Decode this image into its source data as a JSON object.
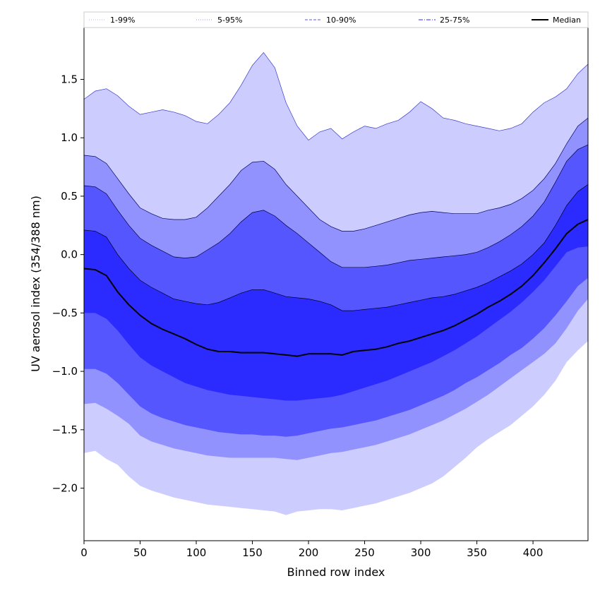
{
  "chart_data": {
    "type": "area",
    "xlabel": "Binned row index",
    "ylabel": "UV aerosol index (354/388 nm)",
    "xlim": [
      0,
      449
    ],
    "ylim": [
      -2.45,
      1.95
    ],
    "x_ticks": [
      0,
      50,
      100,
      150,
      200,
      250,
      300,
      350,
      400
    ],
    "y_ticks": [
      -2.0,
      -1.5,
      -1.0,
      -0.5,
      0.0,
      0.5,
      1.0,
      1.5
    ],
    "y_tick_labels": [
      "−2.0",
      "−1.5",
      "−1.0",
      "−0.5",
      "0.0",
      "0.5",
      "1.0",
      "1.5"
    ],
    "grid": false,
    "legend_position": "top",
    "x": [
      0,
      10,
      20,
      30,
      40,
      50,
      60,
      70,
      80,
      90,
      100,
      110,
      120,
      130,
      140,
      150,
      160,
      170,
      180,
      190,
      200,
      210,
      220,
      230,
      240,
      250,
      260,
      270,
      280,
      290,
      300,
      310,
      320,
      330,
      340,
      350,
      360,
      370,
      380,
      390,
      400,
      410,
      420,
      430,
      440,
      449
    ],
    "bands": [
      {
        "name": "1-99%",
        "color": "#ccccff",
        "edge_color": "#3a3acc",
        "line_style": "dotted",
        "lower": [
          -1.7,
          -1.68,
          -1.75,
          -1.8,
          -1.9,
          -1.98,
          -2.02,
          -2.05,
          -2.08,
          -2.1,
          -2.12,
          -2.14,
          -2.15,
          -2.16,
          -2.17,
          -2.18,
          -2.19,
          -2.2,
          -2.23,
          -2.2,
          -2.19,
          -2.18,
          -2.18,
          -2.19,
          -2.17,
          -2.15,
          -2.13,
          -2.1,
          -2.07,
          -2.04,
          -2.0,
          -1.96,
          -1.9,
          -1.82,
          -1.74,
          -1.65,
          -1.58,
          -1.52,
          -1.46,
          -1.38,
          -1.3,
          -1.2,
          -1.08,
          -0.92,
          -0.82,
          -0.74
        ],
        "upper": [
          1.33,
          1.4,
          1.42,
          1.36,
          1.27,
          1.2,
          1.22,
          1.24,
          1.22,
          1.19,
          1.14,
          1.12,
          1.2,
          1.3,
          1.45,
          1.62,
          1.73,
          1.6,
          1.3,
          1.1,
          0.98,
          1.05,
          1.08,
          0.99,
          1.05,
          1.1,
          1.08,
          1.12,
          1.15,
          1.22,
          1.31,
          1.25,
          1.17,
          1.15,
          1.12,
          1.1,
          1.08,
          1.06,
          1.08,
          1.12,
          1.22,
          1.3,
          1.35,
          1.42,
          1.55,
          1.63
        ]
      },
      {
        "name": "5-95%",
        "color": "#9292ff",
        "edge_color": "#000066",
        "line_style": "dotted",
        "lower": [
          -1.28,
          -1.27,
          -1.32,
          -1.38,
          -1.45,
          -1.55,
          -1.6,
          -1.63,
          -1.66,
          -1.68,
          -1.7,
          -1.72,
          -1.73,
          -1.74,
          -1.74,
          -1.74,
          -1.74,
          -1.74,
          -1.75,
          -1.76,
          -1.74,
          -1.72,
          -1.7,
          -1.69,
          -1.67,
          -1.65,
          -1.63,
          -1.6,
          -1.57,
          -1.54,
          -1.5,
          -1.46,
          -1.42,
          -1.37,
          -1.32,
          -1.26,
          -1.2,
          -1.13,
          -1.06,
          -0.99,
          -0.92,
          -0.85,
          -0.76,
          -0.63,
          -0.48,
          -0.38
        ],
        "upper": [
          0.85,
          0.84,
          0.78,
          0.65,
          0.52,
          0.4,
          0.35,
          0.31,
          0.3,
          0.3,
          0.32,
          0.4,
          0.5,
          0.6,
          0.72,
          0.79,
          0.8,
          0.73,
          0.6,
          0.5,
          0.4,
          0.3,
          0.24,
          0.2,
          0.2,
          0.22,
          0.25,
          0.28,
          0.31,
          0.34,
          0.36,
          0.37,
          0.36,
          0.35,
          0.35,
          0.35,
          0.38,
          0.4,
          0.43,
          0.48,
          0.55,
          0.65,
          0.78,
          0.95,
          1.1,
          1.17
        ]
      },
      {
        "name": "10-90%",
        "color": "#5656ff",
        "edge_color": "#000044",
        "line_style": "dashed",
        "lower": [
          -0.98,
          -0.98,
          -1.02,
          -1.1,
          -1.2,
          -1.3,
          -1.36,
          -1.4,
          -1.43,
          -1.46,
          -1.48,
          -1.5,
          -1.52,
          -1.53,
          -1.54,
          -1.54,
          -1.55,
          -1.55,
          -1.56,
          -1.55,
          -1.53,
          -1.51,
          -1.49,
          -1.48,
          -1.46,
          -1.44,
          -1.42,
          -1.39,
          -1.36,
          -1.33,
          -1.29,
          -1.25,
          -1.21,
          -1.16,
          -1.1,
          -1.05,
          -0.99,
          -0.93,
          -0.86,
          -0.8,
          -0.72,
          -0.63,
          -0.52,
          -0.4,
          -0.27,
          -0.2
        ],
        "upper": [
          0.59,
          0.58,
          0.52,
          0.38,
          0.25,
          0.14,
          0.08,
          0.03,
          -0.02,
          -0.03,
          -0.02,
          0.04,
          0.1,
          0.18,
          0.28,
          0.36,
          0.38,
          0.33,
          0.25,
          0.18,
          0.1,
          0.02,
          -0.06,
          -0.11,
          -0.11,
          -0.11,
          -0.1,
          -0.09,
          -0.07,
          -0.05,
          -0.04,
          -0.03,
          -0.02,
          -0.01,
          0.0,
          0.02,
          0.06,
          0.11,
          0.17,
          0.24,
          0.33,
          0.45,
          0.62,
          0.8,
          0.9,
          0.94
        ]
      },
      {
        "name": "25-75%",
        "color": "#2b2bff",
        "edge_color": "#000022",
        "line_style": "dashdot",
        "lower": [
          -0.5,
          -0.5,
          -0.55,
          -0.65,
          -0.77,
          -0.88,
          -0.95,
          -1.0,
          -1.05,
          -1.1,
          -1.13,
          -1.16,
          -1.18,
          -1.2,
          -1.21,
          -1.22,
          -1.23,
          -1.24,
          -1.25,
          -1.25,
          -1.24,
          -1.23,
          -1.22,
          -1.2,
          -1.17,
          -1.14,
          -1.11,
          -1.08,
          -1.04,
          -1.0,
          -0.96,
          -0.92,
          -0.87,
          -0.82,
          -0.76,
          -0.7,
          -0.63,
          -0.56,
          -0.49,
          -0.41,
          -0.32,
          -0.22,
          -0.1,
          0.02,
          0.06,
          0.07
        ],
        "upper": [
          0.21,
          0.2,
          0.15,
          0.0,
          -0.12,
          -0.22,
          -0.28,
          -0.33,
          -0.38,
          -0.4,
          -0.42,
          -0.43,
          -0.41,
          -0.37,
          -0.33,
          -0.3,
          -0.3,
          -0.33,
          -0.36,
          -0.37,
          -0.38,
          -0.4,
          -0.43,
          -0.48,
          -0.48,
          -0.47,
          -0.46,
          -0.45,
          -0.43,
          -0.41,
          -0.39,
          -0.37,
          -0.36,
          -0.34,
          -0.31,
          -0.28,
          -0.24,
          -0.19,
          -0.14,
          -0.08,
          0.0,
          0.1,
          0.25,
          0.42,
          0.54,
          0.6
        ]
      }
    ],
    "series": [
      {
        "name": "Median",
        "color": "#000000",
        "line_style": "solid",
        "values": [
          -0.12,
          -0.13,
          -0.18,
          -0.32,
          -0.43,
          -0.52,
          -0.59,
          -0.64,
          -0.68,
          -0.72,
          -0.77,
          -0.81,
          -0.83,
          -0.83,
          -0.84,
          -0.84,
          -0.84,
          -0.85,
          -0.86,
          -0.87,
          -0.85,
          -0.85,
          -0.85,
          -0.86,
          -0.83,
          -0.82,
          -0.81,
          -0.79,
          -0.76,
          -0.74,
          -0.71,
          -0.68,
          -0.65,
          -0.61,
          -0.56,
          -0.51,
          -0.45,
          -0.4,
          -0.34,
          -0.27,
          -0.18,
          -0.07,
          0.05,
          0.18,
          0.26,
          0.3
        ]
      }
    ],
    "legend": [
      "1-99%",
      "5-95%",
      "10-90%",
      "25-75%",
      "Median"
    ]
  }
}
